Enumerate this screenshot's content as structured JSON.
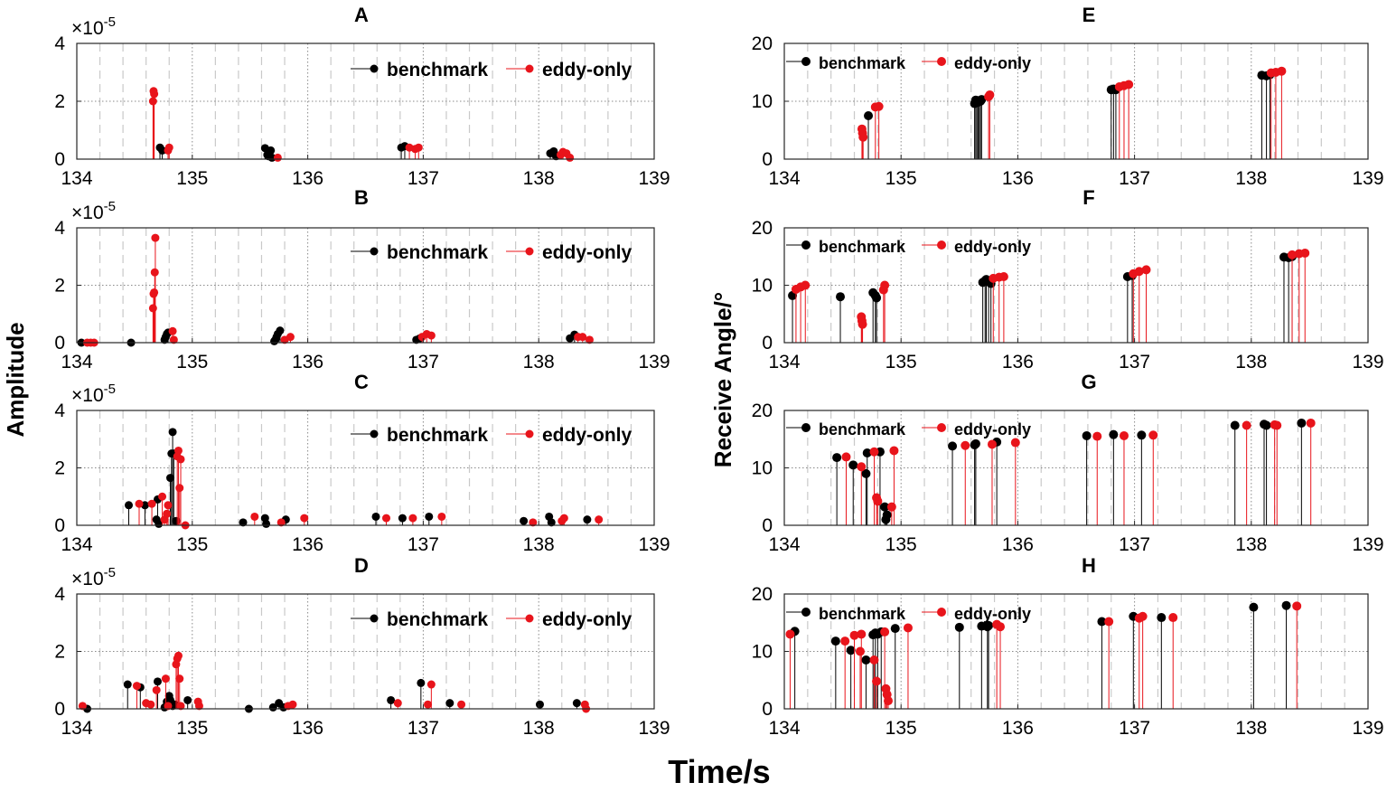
{
  "figure": {
    "ylabel_left": "Amplitude",
    "ylabel_right": "Receive Angle/°",
    "xlabel": "Time/s"
  },
  "legend": {
    "benchmark": "benchmark",
    "eddy_only": "eddy-only"
  },
  "colors": {
    "benchmark": "#000000",
    "eddy_only": "#e8141b"
  },
  "chart_data": [
    {
      "id": "A",
      "type": "stem",
      "title": "A",
      "ylabel": "Amplitude",
      "xlabel": "",
      "xlim": [
        134,
        139
      ],
      "ylim": [
        0,
        4
      ],
      "yticks": [
        0,
        2,
        4
      ],
      "xticks": [
        134,
        135,
        136,
        137,
        138,
        139
      ],
      "exponent": "×10^-5",
      "series": [
        {
          "name": "benchmark",
          "x": [
            134.72,
            134.74,
            135.63,
            135.65,
            135.66,
            135.68,
            135.69,
            136.81,
            136.84,
            138.1,
            138.13,
            138.15
          ],
          "y": [
            0.4,
            0.3,
            0.38,
            0.15,
            0.1,
            0.3,
            0.05,
            0.4,
            0.45,
            0.2,
            0.27,
            0.1
          ]
        },
        {
          "name": "eddy-only",
          "x": [
            134.66,
            134.665,
            134.67,
            134.79,
            134.8,
            135.74,
            136.88,
            136.93,
            136.96,
            138.19,
            138.21,
            138.24,
            138.27
          ],
          "y": [
            2.0,
            2.35,
            2.25,
            0.3,
            0.4,
            0.05,
            0.4,
            0.35,
            0.4,
            0.15,
            0.25,
            0.2,
            0.05
          ]
        }
      ]
    },
    {
      "id": "B",
      "type": "stem",
      "title": "B",
      "ylabel": "Amplitude",
      "xlabel": "",
      "xlim": [
        134,
        139
      ],
      "ylim": [
        0,
        4
      ],
      "yticks": [
        0,
        2,
        4
      ],
      "xticks": [
        134,
        135,
        136,
        137,
        138,
        139
      ],
      "exponent": "×10^-5",
      "series": [
        {
          "name": "benchmark",
          "x": [
            134.04,
            134.47,
            134.76,
            134.77,
            134.78,
            134.79,
            135.71,
            135.72,
            135.73,
            135.74,
            135.76,
            136.94,
            136.97,
            138.27,
            138.31
          ],
          "y": [
            0.0,
            0.0,
            0.1,
            0.2,
            0.3,
            0.35,
            0.05,
            0.1,
            0.2,
            0.3,
            0.42,
            0.1,
            0.15,
            0.15,
            0.28
          ]
        },
        {
          "name": "eddy-only",
          "x": [
            134.09,
            134.12,
            134.15,
            134.66,
            134.665,
            134.67,
            134.675,
            134.68,
            134.83,
            134.84,
            135.8,
            135.85,
            136.99,
            137.03,
            137.07,
            138.34,
            138.38,
            138.44
          ],
          "y": [
            0.0,
            0.0,
            0.0,
            1.2,
            1.7,
            1.75,
            2.45,
            3.65,
            0.4,
            0.1,
            0.1,
            0.2,
            0.2,
            0.3,
            0.25,
            0.2,
            0.2,
            0.1
          ]
        }
      ]
    },
    {
      "id": "C",
      "type": "stem",
      "title": "C",
      "ylabel": "Amplitude",
      "xlabel": "",
      "xlim": [
        134,
        139
      ],
      "ylim": [
        0,
        4
      ],
      "yticks": [
        0,
        2,
        4
      ],
      "xticks": [
        134,
        135,
        136,
        137,
        138,
        139
      ],
      "exponent": "×10^-5",
      "series": [
        {
          "name": "benchmark",
          "x": [
            134.45,
            134.59,
            134.69,
            134.7,
            134.71,
            134.81,
            134.82,
            134.83,
            134.84,
            134.86,
            135.44,
            135.63,
            135.64,
            135.81,
            136.59,
            136.82,
            137.05,
            137.87,
            138.09,
            138.11,
            138.42
          ],
          "y": [
            0.7,
            0.7,
            0.2,
            0.9,
            0.05,
            1.65,
            2.5,
            3.25,
            2.5,
            0.15,
            0.1,
            0.25,
            0.05,
            0.2,
            0.3,
            0.25,
            0.3,
            0.15,
            0.3,
            0.1,
            0.2
          ]
        },
        {
          "name": "eddy-only",
          "x": [
            134.54,
            134.65,
            134.74,
            134.76,
            134.78,
            134.79,
            134.87,
            134.88,
            134.89,
            134.9,
            134.94,
            135.54,
            135.77,
            135.97,
            136.68,
            136.91,
            137.16,
            137.95,
            138.2,
            138.22,
            138.52
          ],
          "y": [
            0.75,
            0.75,
            1.0,
            0.2,
            0.4,
            0.7,
            2.4,
            2.6,
            1.3,
            2.3,
            0.0,
            0.3,
            0.1,
            0.25,
            0.25,
            0.25,
            0.3,
            0.1,
            0.15,
            0.25,
            0.2
          ]
        }
      ]
    },
    {
      "id": "D",
      "type": "stem",
      "title": "D",
      "ylabel": "Amplitude",
      "xlabel": "",
      "xlim": [
        134,
        139
      ],
      "ylim": [
        0,
        4
      ],
      "yticks": [
        0,
        2,
        4
      ],
      "xticks": [
        134,
        135,
        136,
        137,
        138,
        139
      ],
      "exponent": "×10^-5",
      "series": [
        {
          "name": "benchmark",
          "x": [
            134.09,
            134.44,
            134.55,
            134.7,
            134.76,
            134.78,
            134.8,
            134.81,
            134.83,
            134.85,
            134.96,
            135.49,
            135.7,
            135.75,
            135.79,
            136.72,
            136.98,
            137.23,
            138.01,
            138.33
          ],
          "y": [
            0.0,
            0.85,
            0.75,
            0.95,
            0.05,
            0.25,
            0.45,
            0.3,
            0.1,
            0.15,
            0.3,
            0.0,
            0.05,
            0.2,
            0.05,
            0.3,
            0.9,
            0.2,
            0.15,
            0.2
          ]
        },
        {
          "name": "eddy-only",
          "x": [
            134.05,
            134.52,
            134.6,
            134.64,
            134.69,
            134.77,
            134.79,
            134.86,
            134.87,
            134.88,
            134.89,
            134.9,
            135.05,
            135.06,
            135.83,
            135.87,
            136.78,
            137.04,
            137.07,
            137.33,
            138.4,
            138.41
          ],
          "y": [
            0.1,
            0.8,
            0.2,
            0.15,
            0.65,
            1.05,
            0.1,
            1.55,
            1.75,
            1.85,
            1.05,
            0.1,
            0.25,
            0.1,
            0.1,
            0.15,
            0.2,
            0.15,
            0.85,
            0.15,
            0.15,
            0.0
          ]
        }
      ]
    },
    {
      "id": "E",
      "type": "stem",
      "title": "E",
      "ylabel": "Receive Angle/°",
      "xlabel": "",
      "xlim": [
        134,
        139
      ],
      "ylim": [
        0,
        20
      ],
      "yticks": [
        0,
        10,
        20
      ],
      "xticks": [
        134,
        135,
        136,
        137,
        138,
        139
      ],
      "series": [
        {
          "name": "benchmark",
          "x": [
            134.72,
            135.63,
            135.64,
            135.65,
            135.66,
            135.67,
            135.68,
            135.69,
            136.8,
            136.82,
            136.84,
            138.09,
            138.13,
            138.16
          ],
          "y": [
            7.5,
            9.6,
            10.2,
            9.8,
            10.1,
            9.9,
            10.0,
            10.3,
            12.0,
            12.1,
            12.0,
            14.5,
            14.4,
            14.6
          ]
        },
        {
          "name": "eddy-only",
          "x": [
            134.665,
            134.67,
            134.675,
            134.78,
            134.81,
            135.75,
            135.76,
            136.87,
            136.91,
            136.95,
            138.17,
            138.21,
            138.26
          ],
          "y": [
            5.2,
            4.5,
            3.8,
            9.0,
            9.1,
            10.8,
            11.1,
            12.5,
            12.7,
            12.9,
            14.9,
            15.0,
            15.2
          ]
        }
      ]
    },
    {
      "id": "F",
      "type": "stem",
      "title": "F",
      "ylabel": "Receive Angle/°",
      "xlabel": "",
      "xlim": [
        134,
        139
      ],
      "ylim": [
        0,
        20
      ],
      "yticks": [
        0,
        10,
        20
      ],
      "xticks": [
        134,
        135,
        136,
        137,
        138,
        139
      ],
      "series": [
        {
          "name": "benchmark",
          "x": [
            134.07,
            134.48,
            134.76,
            134.78,
            134.79,
            135.7,
            135.72,
            135.73,
            135.75,
            135.77,
            136.94,
            136.98,
            138.28,
            138.32,
            138.35
          ],
          "y": [
            8.2,
            8.0,
            8.7,
            8.2,
            7.8,
            10.5,
            10.8,
            11.0,
            10.6,
            10.3,
            11.5,
            11.7,
            14.9,
            14.8,
            15.0
          ]
        },
        {
          "name": "eddy-only",
          "x": [
            134.1,
            134.14,
            134.18,
            134.66,
            134.665,
            134.67,
            134.85,
            134.86,
            135.79,
            135.84,
            135.88,
            136.99,
            137.04,
            137.1,
            138.35,
            138.41,
            138.46
          ],
          "y": [
            9.3,
            9.7,
            10.0,
            4.5,
            3.8,
            3.2,
            9.2,
            10.0,
            11.2,
            11.4,
            11.5,
            12.0,
            12.4,
            12.7,
            15.3,
            15.5,
            15.6
          ]
        }
      ]
    },
    {
      "id": "G",
      "type": "stem",
      "title": "G",
      "ylabel": "Receive Angle/°",
      "xlabel": "",
      "xlim": [
        134,
        139
      ],
      "ylim": [
        0,
        20
      ],
      "yticks": [
        0,
        10,
        20
      ],
      "xticks": [
        134,
        135,
        136,
        137,
        138,
        139
      ],
      "series": [
        {
          "name": "benchmark",
          "x": [
            134.45,
            134.59,
            134.7,
            134.71,
            134.82,
            134.86,
            134.87,
            134.88,
            135.44,
            135.63,
            135.64,
            135.82,
            136.59,
            136.82,
            137.06,
            137.86,
            138.11,
            138.13,
            138.43
          ],
          "y": [
            11.8,
            10.5,
            9.0,
            12.6,
            12.8,
            3.2,
            1.0,
            1.8,
            13.8,
            14.0,
            14.2,
            14.5,
            15.6,
            15.8,
            15.7,
            17.4,
            17.6,
            17.4,
            17.8
          ]
        },
        {
          "name": "eddy-only",
          "x": [
            134.53,
            134.66,
            134.77,
            134.79,
            134.8,
            134.92,
            134.94,
            135.55,
            135.78,
            135.98,
            136.68,
            136.91,
            137.16,
            137.96,
            138.2,
            138.22,
            138.51
          ],
          "y": [
            11.9,
            10.2,
            12.8,
            4.8,
            4.2,
            3.2,
            13.0,
            13.9,
            14.1,
            14.4,
            15.5,
            15.6,
            15.7,
            17.4,
            17.5,
            17.4,
            17.8
          ]
        }
      ]
    },
    {
      "id": "H",
      "type": "stem",
      "title": "H",
      "ylabel": "Receive Angle/°",
      "xlabel": "",
      "xlim": [
        134,
        139
      ],
      "ylim": [
        0,
        20
      ],
      "yticks": [
        0,
        10,
        20
      ],
      "xticks": [
        134,
        135,
        136,
        137,
        138,
        139
      ],
      "series": [
        {
          "name": "benchmark",
          "x": [
            134.09,
            134.44,
            134.57,
            134.7,
            134.76,
            134.78,
            134.8,
            134.83,
            134.95,
            135.5,
            135.69,
            135.74,
            135.75,
            136.72,
            136.99,
            137.23,
            138.02,
            138.3
          ],
          "y": [
            13.5,
            11.8,
            10.2,
            8.5,
            12.9,
            13.2,
            13.0,
            13.4,
            14.0,
            14.2,
            14.4,
            14.3,
            14.5,
            15.2,
            16.1,
            15.9,
            17.7,
            18.0
          ]
        },
        {
          "name": "eddy-only",
          "x": [
            134.05,
            134.52,
            134.6,
            134.65,
            134.66,
            134.77,
            134.79,
            134.86,
            134.87,
            134.88,
            134.89,
            135.06,
            135.82,
            135.85,
            136.78,
            137.04,
            137.07,
            137.33,
            138.39
          ],
          "y": [
            13.0,
            11.8,
            12.8,
            10.0,
            13.0,
            8.5,
            4.8,
            13.4,
            3.5,
            2.5,
            1.4,
            14.1,
            14.7,
            14.3,
            15.2,
            15.8,
            16.1,
            15.9,
            17.9
          ]
        }
      ]
    }
  ]
}
